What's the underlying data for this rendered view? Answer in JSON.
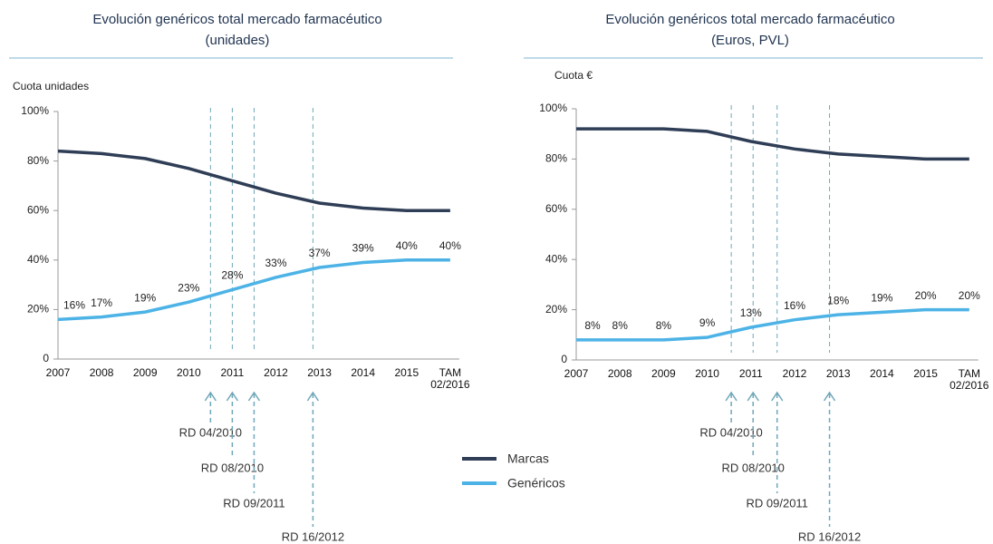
{
  "chart_data": [
    {
      "type": "line",
      "title": "Evolución genéricos total mercado farmacéutico",
      "subtitle": "(unidades)",
      "y_label": "Cuota unidades",
      "categories": [
        "2007",
        "2008",
        "2009",
        "2010",
        "2011",
        "2012",
        "2013",
        "2014",
        "2015",
        "TAM 02/2016"
      ],
      "series": [
        {
          "name": "Marcas",
          "color": "#2f3e56",
          "values": [
            84,
            83,
            81,
            77,
            72,
            67,
            63,
            61,
            60,
            60
          ]
        },
        {
          "name": "Genéricos",
          "color": "#4db3e6",
          "values": [
            16,
            17,
            19,
            23,
            28,
            33,
            37,
            39,
            40,
            40
          ],
          "value_labels": [
            "16%",
            "17%",
            "19%",
            "23%",
            "28%",
            "33%",
            "37%",
            "39%",
            "40%",
            "40%"
          ]
        }
      ],
      "ylim": [
        0,
        100
      ],
      "yticks": [
        0,
        {
          "value": 20,
          "label": "20%"
        },
        {
          "value": 40,
          "label": "40%"
        },
        {
          "value": 60,
          "label": "60%"
        },
        {
          "value": 80,
          "label": "80%"
        },
        {
          "value": 100,
          "label": "100%"
        }
      ],
      "annotations": [
        {
          "label": "RD 04/2010",
          "x": 2010.5
        },
        {
          "label": "RD 08/2010",
          "x": 2011
        },
        {
          "label": "RD 09/2011",
          "x": 2011.5
        },
        {
          "label": "RD 16/2012",
          "x": 2012.85
        }
      ]
    },
    {
      "type": "line",
      "title": "Evolución genéricos total mercado farmacéutico",
      "subtitle": "(Euros, PVL)",
      "y_label": "Cuota €",
      "categories": [
        "2007",
        "2008",
        "2009",
        "2010",
        "2011",
        "2012",
        "2013",
        "2014",
        "2015",
        "TAM 02/2016"
      ],
      "series": [
        {
          "name": "Marcas",
          "color": "#2f3e56",
          "values": [
            92,
            92,
            92,
            91,
            87,
            84,
            82,
            81,
            80,
            80
          ]
        },
        {
          "name": "Genéricos",
          "color": "#4db3e6",
          "values": [
            8,
            8,
            8,
            9,
            13,
            16,
            18,
            19,
            20,
            20
          ],
          "value_labels": [
            "8%",
            "8%",
            "8%",
            "9%",
            "13%",
            "16%",
            "18%",
            "19%",
            "20%",
            "20%"
          ]
        }
      ],
      "ylim": [
        0,
        100
      ],
      "yticks": [
        0,
        {
          "value": 20,
          "label": "20%"
        },
        {
          "value": 40,
          "label": "40%"
        },
        {
          "value": 60,
          "label": "60%"
        },
        {
          "value": 80,
          "label": "80%"
        },
        {
          "value": 100,
          "label": "100%"
        }
      ],
      "annotations": [
        {
          "label": "RD 04/2010",
          "x": 2010.55
        },
        {
          "label": "RD 08/2010",
          "x": 2011.05
        },
        {
          "label": "RD 09/2011",
          "x": 2011.6
        },
        {
          "label": "RD 16/2012",
          "x": 2012.8
        }
      ]
    }
  ]
}
